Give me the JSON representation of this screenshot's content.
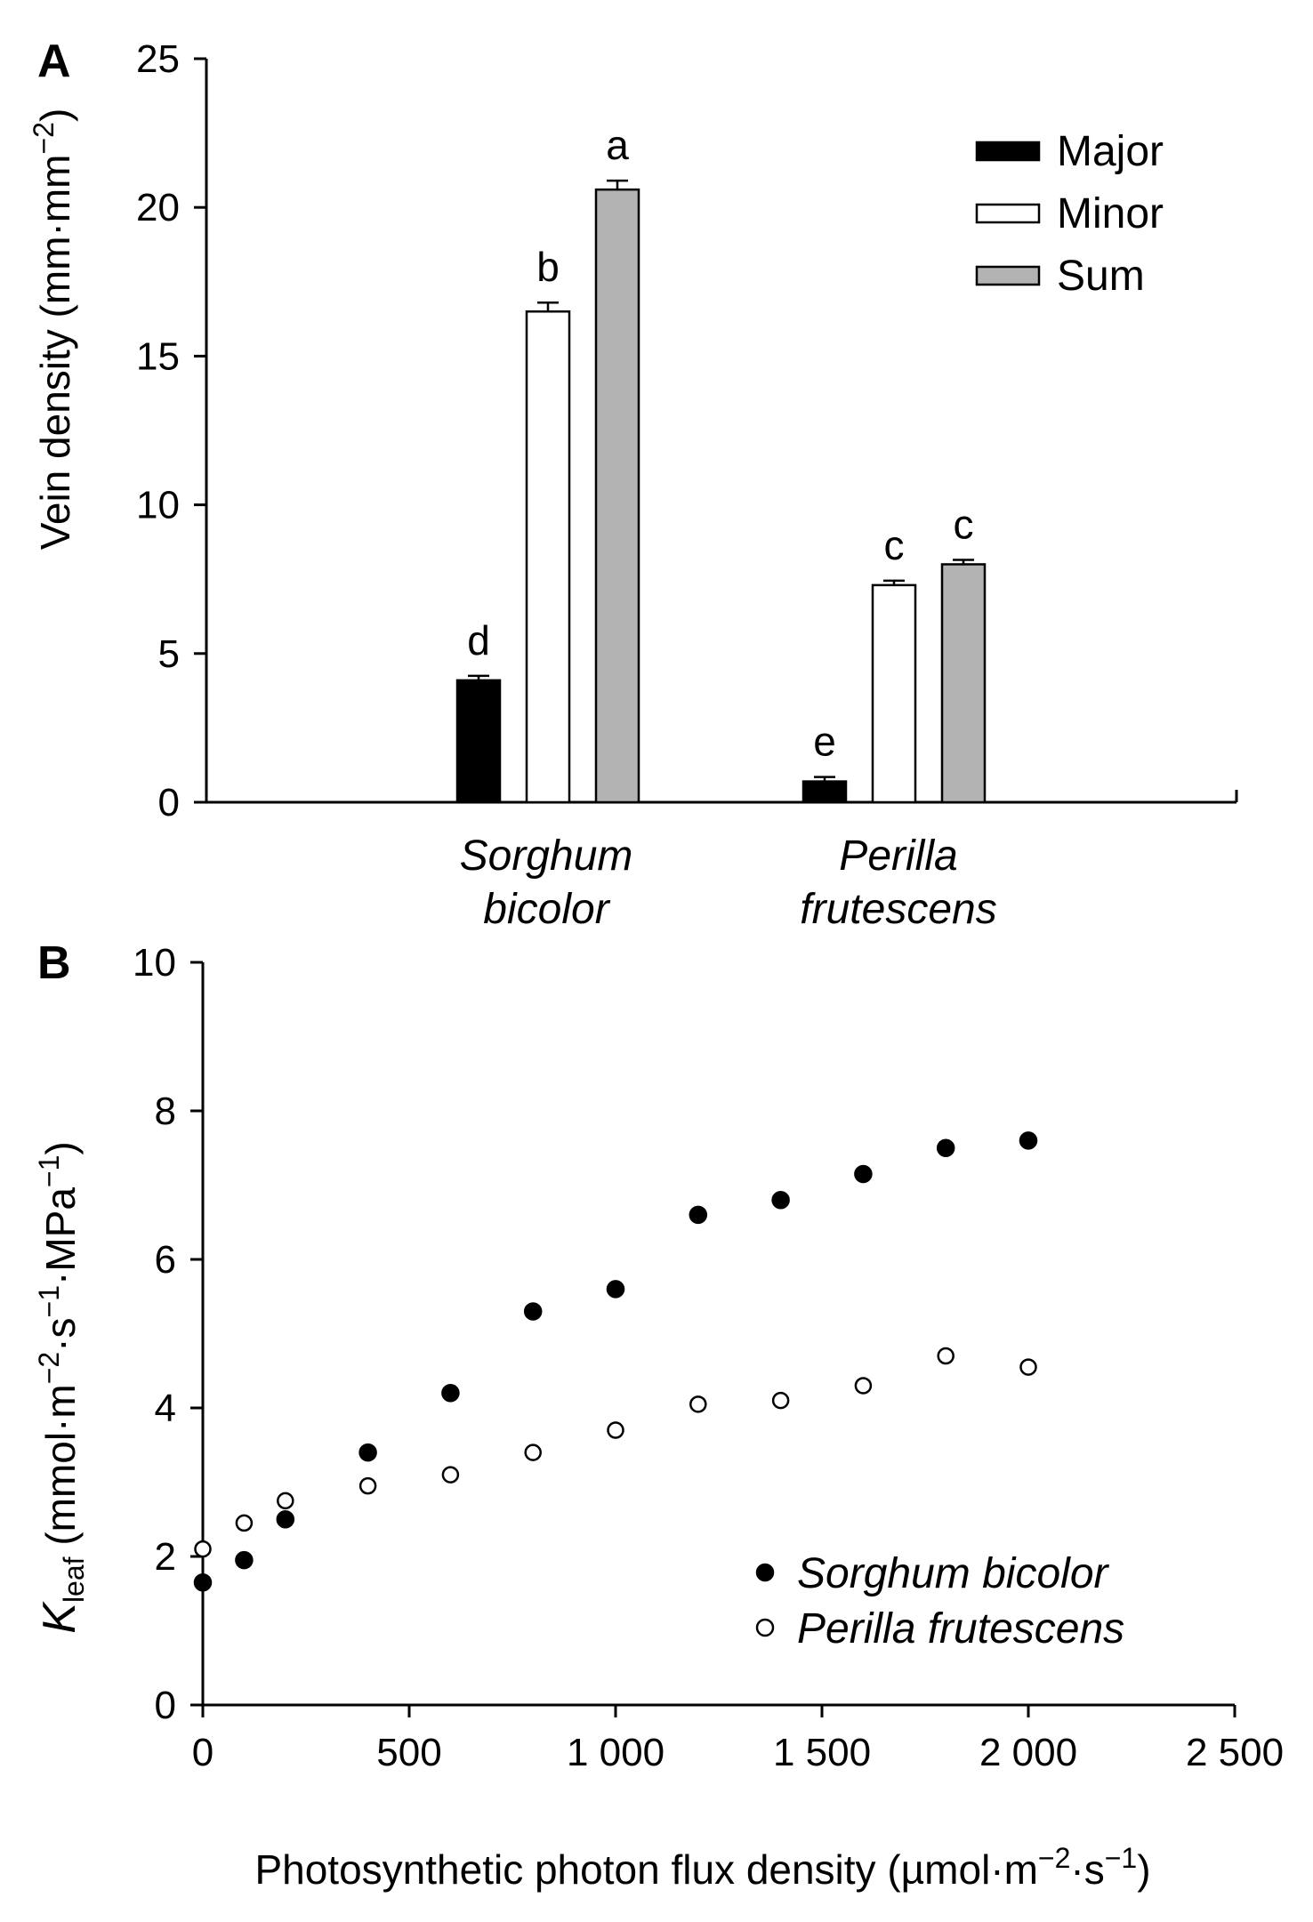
{
  "chart_data": [
    {
      "type": "bar",
      "panel": "A",
      "categories": [
        [
          "Sorghum",
          "bicolor"
        ],
        [
          "Perilla",
          "frutescens"
        ]
      ],
      "ylabel": {
        "main": "Vein density (mm·mm",
        "sup": "−2",
        "close": ")"
      },
      "ylim": [
        0,
        25
      ],
      "yticks": [
        0,
        5,
        10,
        15,
        20,
        25
      ],
      "legend": {
        "position": "top-right",
        "entries": [
          "Major",
          "Minor",
          "Sum"
        ]
      },
      "series": [
        {
          "name": "Major",
          "color": "#000000",
          "values": [
            4.1,
            0.7
          ],
          "errors": [
            0.15,
            0.15
          ],
          "letters": [
            "d",
            "e"
          ]
        },
        {
          "name": "Minor",
          "color": "#ffffff",
          "values": [
            16.5,
            7.3
          ],
          "errors": [
            0.3,
            0.15
          ],
          "letters": [
            "b",
            "c"
          ]
        },
        {
          "name": "Sum",
          "color": "#b3b3b3",
          "values": [
            20.6,
            8.0
          ],
          "errors": [
            0.3,
            0.15
          ],
          "letters": [
            "a",
            "c"
          ]
        }
      ],
      "grid": false
    },
    {
      "type": "scatter",
      "panel": "B",
      "xlabel": {
        "main": "Photosynthetic photon flux density (µmol·m",
        "sup1": "−2",
        "mid": "·s",
        "sup2": "−1",
        "close": ")"
      },
      "ylabel": {
        "k": "K",
        "sub": "leaf",
        "main": " (mmol·m",
        "sup1": "−2",
        "mid1": "·s",
        "sup2": "−1",
        "mid2": "·MPa",
        "sup3": "−1",
        "close": ")"
      },
      "xlim": [
        0,
        2500
      ],
      "ylim": [
        0,
        10
      ],
      "xticks": [
        0,
        500,
        1000,
        1500,
        2000,
        2500
      ],
      "xtick_labels": [
        "0",
        "500",
        "1 000",
        "1 500",
        "2 000",
        "2 500"
      ],
      "yticks": [
        0,
        2,
        4,
        6,
        8,
        10
      ],
      "legend": {
        "position": "bottom-right"
      },
      "series": [
        {
          "name": "Sorghum bicolor",
          "marker": "filled-circle",
          "x": [
            0,
            100,
            200,
            400,
            600,
            800,
            1000,
            1200,
            1400,
            1600,
            1800,
            2000
          ],
          "y": [
            1.65,
            1.95,
            2.5,
            3.4,
            4.2,
            5.3,
            5.6,
            6.6,
            6.8,
            7.15,
            7.5,
            7.6
          ]
        },
        {
          "name": "Perilla frutescens",
          "marker": "open-circle",
          "x": [
            0,
            100,
            200,
            400,
            600,
            800,
            1000,
            1200,
            1400,
            1600,
            1800,
            2000
          ],
          "y": [
            2.1,
            2.45,
            2.75,
            2.95,
            3.1,
            3.4,
            3.7,
            4.05,
            4.1,
            4.3,
            4.7,
            4.55
          ]
        }
      ],
      "grid": false
    }
  ]
}
